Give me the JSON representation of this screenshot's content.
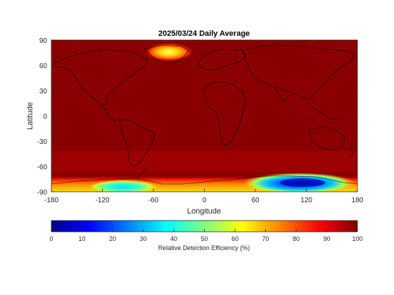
{
  "chart_data": {
    "type": "heatmap",
    "title": "2025/03/24 Daily Average",
    "xlabel": "Longitude",
    "ylabel": "Latitude",
    "xlim": [
      -180,
      180
    ],
    "ylim": [
      -90,
      90
    ],
    "xticks": [
      -180,
      -120,
      -60,
      0,
      60,
      120,
      180
    ],
    "yticks": [
      90,
      60,
      30,
      0,
      -30,
      -60,
      -90
    ],
    "colorbar": {
      "label": "Relative Detection Efficiency (%)",
      "range": [
        0,
        100
      ],
      "ticks": [
        0,
        10,
        20,
        30,
        40,
        50,
        60,
        70,
        80,
        90,
        100
      ],
      "colormap": "jet"
    },
    "dominant_value_percent": 100,
    "notes": "Coastline overlay drawn on a field that is ~100% nearly everywhere; reduced values over Greenland interior and Antarctica.",
    "regions": [
      {
        "name": "Greenland interior",
        "lon": [
          -48,
          -30
        ],
        "lat": [
          68,
          78
        ],
        "value_percent": 70
      },
      {
        "name": "East Antarctica",
        "lon": [
          75,
          160
        ],
        "lat": [
          -90,
          -72
        ],
        "value_percent": 10
      },
      {
        "name": "West Antarctica",
        "lon": [
          -140,
          -70
        ],
        "lat": [
          -90,
          -80
        ],
        "value_percent": 45
      },
      {
        "name": "Antarctic margin",
        "lon": [
          -180,
          180
        ],
        "lat": [
          -90,
          -70
        ],
        "value_percent": 75
      }
    ]
  }
}
